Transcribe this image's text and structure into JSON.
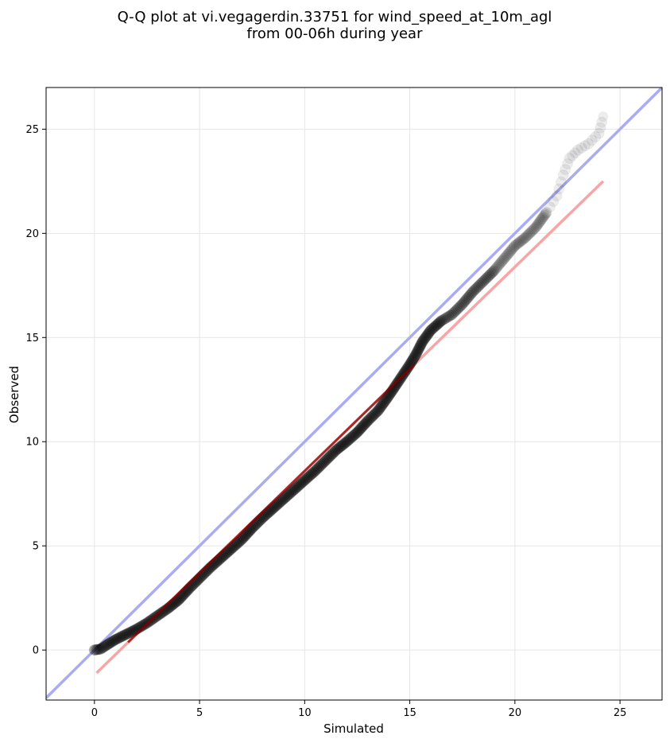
{
  "chart_data": {
    "type": "scatter",
    "title_lines": [
      "Q-Q plot at vi.vegagerdin.33751 for wind_speed_at_10m_agl",
      "from 00-06h during year"
    ],
    "xlabel": "Simulated",
    "ylabel": "Observed",
    "xlim": [
      -2.3,
      27.0
    ],
    "ylim": [
      -2.4,
      27.0
    ],
    "xticks": [
      0,
      5,
      10,
      15,
      20,
      25
    ],
    "yticks": [
      0,
      5,
      10,
      15,
      20,
      25
    ],
    "grid": true,
    "quantile_curve": [
      [
        0.0,
        0.0
      ],
      [
        0.3,
        0.05
      ],
      [
        0.6,
        0.25
      ],
      [
        1.0,
        0.5
      ],
      [
        1.5,
        0.75
      ],
      [
        2.0,
        1.0
      ],
      [
        2.5,
        1.3
      ],
      [
        3.0,
        1.65
      ],
      [
        3.5,
        2.0
      ],
      [
        4.0,
        2.4
      ],
      [
        4.5,
        2.95
      ],
      [
        5.0,
        3.45
      ],
      [
        5.5,
        3.95
      ],
      [
        6.0,
        4.4
      ],
      [
        6.5,
        4.85
      ],
      [
        7.0,
        5.3
      ],
      [
        7.5,
        5.85
      ],
      [
        8.0,
        6.35
      ],
      [
        8.5,
        6.8
      ],
      [
        9.0,
        7.25
      ],
      [
        9.5,
        7.7
      ],
      [
        10.0,
        8.15
      ],
      [
        10.5,
        8.6
      ],
      [
        11.0,
        9.1
      ],
      [
        11.5,
        9.6
      ],
      [
        12.0,
        10.0
      ],
      [
        12.5,
        10.45
      ],
      [
        13.0,
        11.0
      ],
      [
        13.5,
        11.5
      ],
      [
        14.0,
        12.2
      ],
      [
        14.5,
        12.95
      ],
      [
        15.0,
        13.7
      ],
      [
        15.3,
        14.2
      ],
      [
        15.6,
        14.8
      ],
      [
        16.0,
        15.35
      ],
      [
        16.5,
        15.8
      ],
      [
        17.0,
        16.1
      ],
      [
        17.5,
        16.6
      ],
      [
        18.0,
        17.2
      ],
      [
        18.5,
        17.7
      ],
      [
        19.0,
        18.2
      ],
      [
        19.5,
        18.8
      ],
      [
        20.0,
        19.4
      ],
      [
        20.5,
        19.8
      ],
      [
        21.0,
        20.3
      ],
      [
        21.5,
        21.0
      ],
      [
        22.0,
        21.8
      ],
      [
        22.3,
        22.8
      ],
      [
        22.6,
        23.6
      ],
      [
        23.0,
        24.0
      ],
      [
        23.5,
        24.3
      ],
      [
        24.0,
        24.8
      ],
      [
        24.2,
        25.6
      ]
    ],
    "reference_lines": [
      {
        "kind": "identity",
        "color": "#a9acf0",
        "from": [
          -2.3,
          -2.3
        ],
        "to": [
          27.0,
          27.0
        ]
      },
      {
        "kind": "fit",
        "color": "#f7a5a5",
        "from": [
          0.1,
          -1.1
        ],
        "to": [
          24.2,
          22.5
        ]
      }
    ],
    "marker_color": "#000000",
    "fit_segment_color": "#8b0000"
  }
}
